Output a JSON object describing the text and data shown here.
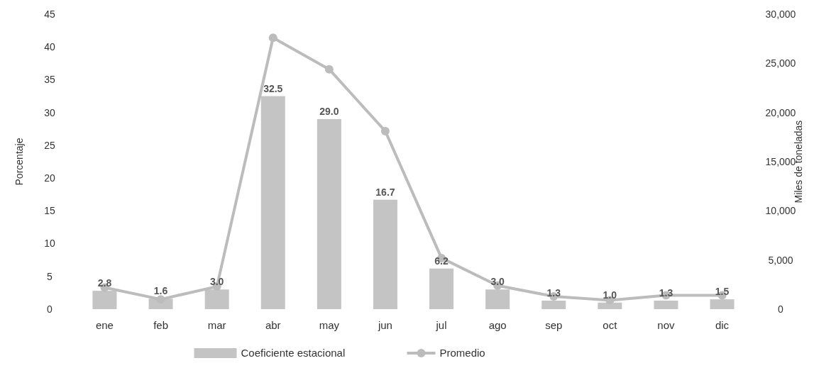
{
  "chart_data": {
    "type": "bar",
    "ylabel": "Porcentaje",
    "y2label": "Miles de toneladas",
    "categories": [
      "ene",
      "feb",
      "mar",
      "abr",
      "may",
      "jun",
      "jul",
      "ago",
      "sep",
      "oct",
      "nov",
      "dic"
    ],
    "series": [
      {
        "name": "Coeficiente estacional",
        "color": "#c4c4c4",
        "values": [
          2.8,
          1.6,
          3.0,
          32.5,
          29.0,
          16.7,
          6.2,
          3.0,
          1.3,
          1.0,
          1.3,
          1.5
        ],
        "value_labels": [
          "2.8",
          "1.6",
          "3.0",
          "32.5",
          "29.0",
          "16.7",
          "6.2",
          "3.0",
          "1.3",
          "1.0",
          "1.3",
          "1.5"
        ]
      },
      {
        "name": "Promedio",
        "type": "line",
        "axis": "y2",
        "color": "#bcbcbc",
        "values": [
          2200,
          1000,
          2300,
          27600,
          24400,
          18100,
          5200,
          2400,
          1300,
          900,
          1400,
          1400
        ]
      }
    ],
    "ylim": [
      0,
      45
    ],
    "yticks": [
      0,
      5,
      10,
      15,
      20,
      25,
      30,
      35,
      40,
      45
    ],
    "y2lim": [
      0,
      30000
    ],
    "y2ticks": [
      {
        "value": 0,
        "label": "0"
      },
      {
        "value": 5000,
        "label": "5,000"
      },
      {
        "value": 10000,
        "label": "10,000"
      },
      {
        "value": 15000,
        "label": "15,000"
      },
      {
        "value": 20000,
        "label": "20,000"
      },
      {
        "value": 25000,
        "label": "25,000"
      },
      {
        "value": 30000,
        "label": "30,000"
      }
    ],
    "grid": false,
    "legend": "bottom",
    "marker": "circle",
    "line_style": "solid"
  }
}
